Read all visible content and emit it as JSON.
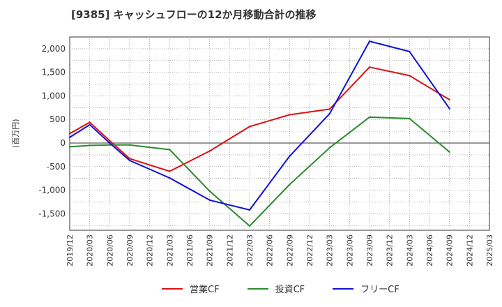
{
  "chart_data": {
    "type": "line",
    "title": "[9385]  キャッシュフローの12か月移動合計の推移",
    "ylabel": "(百万円)",
    "xlabel": "",
    "ylim": [
      -1850,
      2250
    ],
    "yticks": [
      2000,
      1500,
      1000,
      500,
      0,
      -500,
      -1000,
      -1500
    ],
    "ytick_labels": [
      "2,000",
      "1,500",
      "1,000",
      "500",
      "0",
      "-500",
      "-1,000",
      "-1,500"
    ],
    "categories": [
      "2019/12",
      "2020/03",
      "2020/06",
      "2020/09",
      "2020/12",
      "2021/03",
      "2021/06",
      "2021/09",
      "2021/12",
      "2022/03",
      "2022/06",
      "2022/09",
      "2022/12",
      "2023/03",
      "2023/06",
      "2023/09",
      "2023/12",
      "2024/03",
      "2024/06",
      "2024/09",
      "2024/12",
      "2025/03"
    ],
    "grid": true,
    "legend_position": "bottom",
    "series": [
      {
        "name": "営業CF",
        "color": "#dd1111",
        "values": [
          200,
          440,
          50,
          -330,
          null,
          -600,
          null,
          -170,
          null,
          350,
          null,
          600,
          null,
          720,
          null,
          1610,
          null,
          1430,
          null,
          920,
          null,
          null
        ]
      },
      {
        "name": "投資CF",
        "color": "#2a8a2a",
        "values": [
          -80,
          -50,
          -40,
          -40,
          null,
          -140,
          null,
          -1020,
          null,
          -1760,
          null,
          -880,
          null,
          -100,
          null,
          550,
          null,
          520,
          null,
          -190,
          null,
          null
        ]
      },
      {
        "name": "フリーCF",
        "color": "#1010dd",
        "values": [
          120,
          390,
          0,
          -370,
          null,
          -740,
          null,
          -1210,
          null,
          -1420,
          null,
          -280,
          null,
          620,
          null,
          2160,
          null,
          1940,
          null,
          730,
          null,
          null
        ]
      }
    ]
  }
}
